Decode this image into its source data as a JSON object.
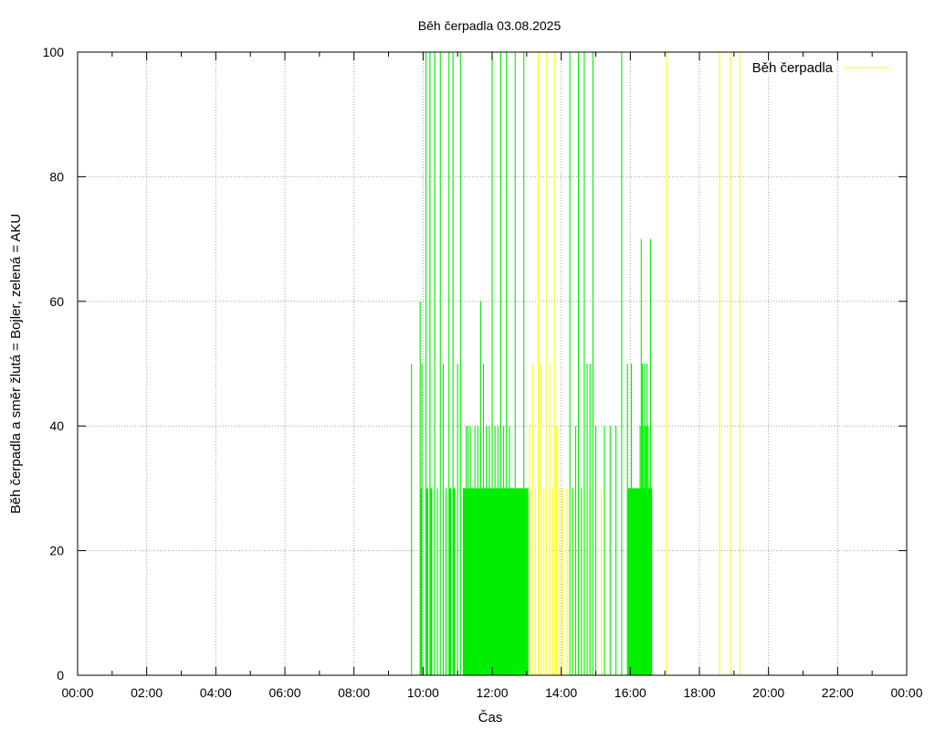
{
  "chart_data": {
    "type": "bar",
    "title": "Běh čerpadla 03.08.2025",
    "xlabel": "Čas",
    "ylabel": "Běh čerpadla a směr žlutá = Bojler, zelená = AKU",
    "xlim": [
      "00:00",
      "24:00"
    ],
    "ylim": [
      0,
      100
    ],
    "x_ticks": [
      "00:00",
      "02:00",
      "04:00",
      "06:00",
      "08:00",
      "10:00",
      "12:00",
      "14:00",
      "16:00",
      "18:00",
      "20:00",
      "22:00",
      "00:00"
    ],
    "y_ticks": [
      0,
      20,
      40,
      60,
      80,
      100
    ],
    "grid": true,
    "legend_position": "top-right",
    "colors": {
      "aku": "#00ee00",
      "bojler": "#ffff00"
    },
    "series": [
      {
        "name": "Běh čerpadla",
        "color": "#ffff00",
        "points": [
          {
            "x": "13:05",
            "y": 40
          },
          {
            "x": "13:10",
            "y": 50
          },
          {
            "x": "13:15",
            "y": 30
          },
          {
            "x": "13:20",
            "y": 100
          },
          {
            "x": "13:25",
            "y": 50
          },
          {
            "x": "13:30",
            "y": 30
          },
          {
            "x": "13:35",
            "y": 100
          },
          {
            "x": "13:40",
            "y": 50
          },
          {
            "x": "13:45",
            "y": 30
          },
          {
            "x": "13:48",
            "y": 100
          },
          {
            "x": "13:52",
            "y": 40
          },
          {
            "x": "13:57",
            "y": 30
          },
          {
            "x": "14:02",
            "y": 30
          },
          {
            "x": "14:10",
            "y": 30
          },
          {
            "x": "14:20",
            "y": 30
          },
          {
            "x": "14:25",
            "y": 40
          },
          {
            "x": "14:40",
            "y": 30
          },
          {
            "x": "14:50",
            "y": 30
          },
          {
            "x": "15:10",
            "y": 30
          },
          {
            "x": "17:03",
            "y": 100
          },
          {
            "x": "18:35",
            "y": 100
          },
          {
            "x": "18:55",
            "y": 100
          },
          {
            "x": "19:10",
            "y": 100
          }
        ]
      },
      {
        "color": "#00ee00",
        "points": [
          {
            "x": "09:40",
            "y": 50
          },
          {
            "x": "09:55",
            "y": 60
          },
          {
            "x": "09:58",
            "y": 50
          },
          {
            "x": "10:05",
            "y": 100
          },
          {
            "x": "10:08",
            "y": 30
          },
          {
            "x": "10:12",
            "y": 100
          },
          {
            "x": "10:15",
            "y": 30
          },
          {
            "x": "10:20",
            "y": 100
          },
          {
            "x": "10:25",
            "y": 30
          },
          {
            "x": "10:30",
            "y": 100
          },
          {
            "x": "10:35",
            "y": 50
          },
          {
            "x": "10:40",
            "y": 30
          },
          {
            "x": "10:45",
            "y": 100
          },
          {
            "x": "10:48",
            "y": 30
          },
          {
            "x": "10:52",
            "y": 100
          },
          {
            "x": "10:55",
            "y": 30
          },
          {
            "x": "11:00",
            "y": 50
          },
          {
            "x": "11:05",
            "y": 100
          },
          {
            "x": "11:10",
            "y": 30
          },
          {
            "x": "11:12",
            "y": 30
          },
          {
            "x": "11:15",
            "y": 40
          },
          {
            "x": "11:18",
            "y": 40
          },
          {
            "x": "11:20",
            "y": 30
          },
          {
            "x": "11:22",
            "y": 40
          },
          {
            "x": "11:25",
            "y": 30
          },
          {
            "x": "11:28",
            "y": 30
          },
          {
            "x": "11:30",
            "y": 40
          },
          {
            "x": "11:32",
            "y": 30
          },
          {
            "x": "11:35",
            "y": 40
          },
          {
            "x": "11:37",
            "y": 30
          },
          {
            "x": "11:40",
            "y": 60
          },
          {
            "x": "11:42",
            "y": 30
          },
          {
            "x": "11:45",
            "y": 50
          },
          {
            "x": "11:47",
            "y": 30
          },
          {
            "x": "11:50",
            "y": 40
          },
          {
            "x": "11:52",
            "y": 30
          },
          {
            "x": "11:55",
            "y": 40
          },
          {
            "x": "11:57",
            "y": 30
          },
          {
            "x": "12:00",
            "y": 100
          },
          {
            "x": "12:02",
            "y": 30
          },
          {
            "x": "12:05",
            "y": 40
          },
          {
            "x": "12:07",
            "y": 30
          },
          {
            "x": "12:10",
            "y": 40
          },
          {
            "x": "12:12",
            "y": 30
          },
          {
            "x": "12:15",
            "y": 100
          },
          {
            "x": "12:17",
            "y": 30
          },
          {
            "x": "12:20",
            "y": 40
          },
          {
            "x": "12:22",
            "y": 30
          },
          {
            "x": "12:25",
            "y": 100
          },
          {
            "x": "12:27",
            "y": 30
          },
          {
            "x": "12:30",
            "y": 40
          },
          {
            "x": "12:32",
            "y": 30
          },
          {
            "x": "12:35",
            "y": 30
          },
          {
            "x": "12:37",
            "y": 30
          },
          {
            "x": "12:40",
            "y": 100
          },
          {
            "x": "12:42",
            "y": 30
          },
          {
            "x": "12:45",
            "y": 30
          },
          {
            "x": "12:47",
            "y": 30
          },
          {
            "x": "12:50",
            "y": 30
          },
          {
            "x": "12:52",
            "y": 30
          },
          {
            "x": "12:55",
            "y": 100
          },
          {
            "x": "12:57",
            "y": 30
          },
          {
            "x": "13:00",
            "y": 30
          },
          {
            "x": "13:02",
            "y": 30
          },
          {
            "x": "14:15",
            "y": 100
          },
          {
            "x": "14:20",
            "y": 30
          },
          {
            "x": "14:25",
            "y": 40
          },
          {
            "x": "14:30",
            "y": 100
          },
          {
            "x": "14:35",
            "y": 30
          },
          {
            "x": "14:40",
            "y": 100
          },
          {
            "x": "14:45",
            "y": 50
          },
          {
            "x": "14:50",
            "y": 50
          },
          {
            "x": "14:55",
            "y": 100
          },
          {
            "x": "15:00",
            "y": 40
          },
          {
            "x": "15:15",
            "y": 40
          },
          {
            "x": "15:25",
            "y": 40
          },
          {
            "x": "15:35",
            "y": 40
          },
          {
            "x": "15:45",
            "y": 100
          },
          {
            "x": "15:55",
            "y": 50
          },
          {
            "x": "15:57",
            "y": 30
          },
          {
            "x": "16:00",
            "y": 30
          },
          {
            "x": "16:02",
            "y": 50
          },
          {
            "x": "16:05",
            "y": 30
          },
          {
            "x": "16:07",
            "y": 30
          },
          {
            "x": "16:10",
            "y": 30
          },
          {
            "x": "16:12",
            "y": 30
          },
          {
            "x": "16:15",
            "y": 30
          },
          {
            "x": "16:17",
            "y": 40
          },
          {
            "x": "16:19",
            "y": 70
          },
          {
            "x": "16:21",
            "y": 50
          },
          {
            "x": "16:23",
            "y": 40
          },
          {
            "x": "16:25",
            "y": 50
          },
          {
            "x": "16:27",
            "y": 40
          },
          {
            "x": "16:29",
            "y": 50
          },
          {
            "x": "16:31",
            "y": 40
          },
          {
            "x": "16:33",
            "y": 30
          },
          {
            "x": "16:35",
            "y": 70
          },
          {
            "x": "16:37",
            "y": 30
          }
        ]
      }
    ]
  }
}
